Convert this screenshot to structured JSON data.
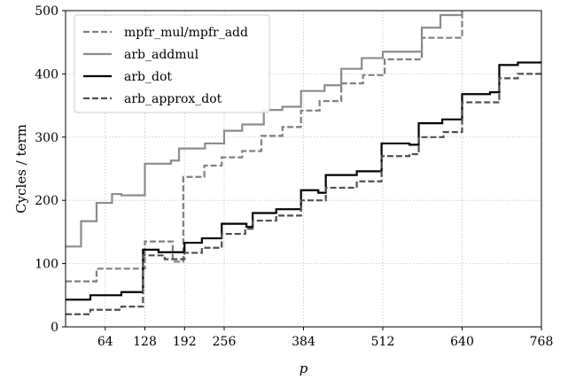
{
  "chart_data": {
    "type": "line",
    "xlabel": "p",
    "ylabel": "Cycles / term",
    "xlim": [
      0,
      768
    ],
    "ylim": [
      0,
      500
    ],
    "xticks": [
      64,
      128,
      192,
      256,
      384,
      512,
      640,
      768
    ],
    "yticks": [
      0,
      100,
      200,
      300,
      400,
      500
    ],
    "grid": true,
    "legend_position": "top-left",
    "series": [
      {
        "name": "mpfr_mul/mpfr_add",
        "color": "#808080",
        "style": "dashed",
        "points": [
          [
            0,
            72
          ],
          [
            50,
            72
          ],
          [
            50,
            92
          ],
          [
            100,
            92
          ],
          [
            128,
            92
          ],
          [
            128,
            135
          ],
          [
            173,
            135
          ],
          [
            173,
            103
          ],
          [
            190,
            103
          ],
          [
            190,
            237
          ],
          [
            224,
            237
          ],
          [
            224,
            255
          ],
          [
            252,
            255
          ],
          [
            252,
            268
          ],
          [
            285,
            268
          ],
          [
            285,
            278
          ],
          [
            316,
            278
          ],
          [
            316,
            302
          ],
          [
            350,
            302
          ],
          [
            350,
            316
          ],
          [
            380,
            316
          ],
          [
            380,
            342
          ],
          [
            410,
            342
          ],
          [
            410,
            357
          ],
          [
            445,
            357
          ],
          [
            445,
            385
          ],
          [
            480,
            385
          ],
          [
            480,
            398
          ],
          [
            515,
            398
          ],
          [
            515,
            423
          ],
          [
            575,
            423
          ],
          [
            575,
            457
          ],
          [
            640,
            457
          ],
          [
            640,
            500
          ]
        ]
      },
      {
        "name": "arb_addmul",
        "color": "#8c8c8c",
        "style": "solid",
        "points": [
          [
            0,
            127
          ],
          [
            25,
            127
          ],
          [
            25,
            167
          ],
          [
            50,
            167
          ],
          [
            50,
            196
          ],
          [
            75,
            196
          ],
          [
            75,
            210
          ],
          [
            90,
            210
          ],
          [
            90,
            208
          ],
          [
            128,
            208
          ],
          [
            128,
            258
          ],
          [
            170,
            258
          ],
          [
            170,
            263
          ],
          [
            183,
            263
          ],
          [
            183,
            282
          ],
          [
            225,
            282
          ],
          [
            225,
            290
          ],
          [
            256,
            290
          ],
          [
            256,
            310
          ],
          [
            285,
            310
          ],
          [
            285,
            320
          ],
          [
            320,
            320
          ],
          [
            320,
            343
          ],
          [
            350,
            343
          ],
          [
            350,
            348
          ],
          [
            380,
            348
          ],
          [
            380,
            373
          ],
          [
            418,
            373
          ],
          [
            418,
            382
          ],
          [
            445,
            382
          ],
          [
            445,
            408
          ],
          [
            478,
            408
          ],
          [
            478,
            425
          ],
          [
            512,
            425
          ],
          [
            512,
            435
          ],
          [
            575,
            435
          ],
          [
            575,
            473
          ],
          [
            605,
            473
          ],
          [
            605,
            493
          ],
          [
            640,
            493
          ],
          [
            640,
            500
          ]
        ]
      },
      {
        "name": "arb_dot",
        "color": "#000000",
        "style": "solid",
        "points": [
          [
            0,
            43
          ],
          [
            40,
            43
          ],
          [
            40,
            50
          ],
          [
            90,
            50
          ],
          [
            90,
            55
          ],
          [
            125,
            55
          ],
          [
            125,
            122
          ],
          [
            150,
            122
          ],
          [
            150,
            118
          ],
          [
            192,
            118
          ],
          [
            192,
            133
          ],
          [
            220,
            133
          ],
          [
            220,
            140
          ],
          [
            252,
            140
          ],
          [
            252,
            163
          ],
          [
            292,
            163
          ],
          [
            292,
            158
          ],
          [
            302,
            158
          ],
          [
            302,
            180
          ],
          [
            340,
            180
          ],
          [
            340,
            186
          ],
          [
            380,
            186
          ],
          [
            380,
            216
          ],
          [
            408,
            216
          ],
          [
            408,
            212
          ],
          [
            420,
            212
          ],
          [
            420,
            240
          ],
          [
            470,
            240
          ],
          [
            470,
            246
          ],
          [
            510,
            246
          ],
          [
            510,
            290
          ],
          [
            555,
            290
          ],
          [
            555,
            288
          ],
          [
            570,
            288
          ],
          [
            570,
            322
          ],
          [
            608,
            322
          ],
          [
            608,
            328
          ],
          [
            640,
            328
          ],
          [
            640,
            368
          ],
          [
            685,
            368
          ],
          [
            685,
            371
          ],
          [
            700,
            371
          ],
          [
            700,
            414
          ],
          [
            730,
            414
          ],
          [
            730,
            418
          ],
          [
            768,
            418
          ]
        ]
      },
      {
        "name": "arb_approx_dot",
        "color": "#505050",
        "style": "dashed",
        "points": [
          [
            0,
            20
          ],
          [
            40,
            20
          ],
          [
            40,
            27
          ],
          [
            90,
            27
          ],
          [
            90,
            32
          ],
          [
            125,
            32
          ],
          [
            125,
            113
          ],
          [
            160,
            113
          ],
          [
            160,
            107
          ],
          [
            192,
            107
          ],
          [
            192,
            117
          ],
          [
            220,
            117
          ],
          [
            220,
            125
          ],
          [
            252,
            125
          ],
          [
            252,
            147
          ],
          [
            290,
            147
          ],
          [
            290,
            155
          ],
          [
            302,
            155
          ],
          [
            302,
            168
          ],
          [
            340,
            168
          ],
          [
            340,
            176
          ],
          [
            380,
            176
          ],
          [
            380,
            200
          ],
          [
            420,
            200
          ],
          [
            420,
            220
          ],
          [
            470,
            220
          ],
          [
            470,
            230
          ],
          [
            510,
            230
          ],
          [
            510,
            270
          ],
          [
            555,
            270
          ],
          [
            555,
            273
          ],
          [
            570,
            273
          ],
          [
            570,
            300
          ],
          [
            610,
            300
          ],
          [
            610,
            308
          ],
          [
            640,
            308
          ],
          [
            640,
            355
          ],
          [
            700,
            355
          ],
          [
            700,
            393
          ],
          [
            730,
            393
          ],
          [
            730,
            400
          ],
          [
            768,
            400
          ]
        ]
      }
    ]
  }
}
